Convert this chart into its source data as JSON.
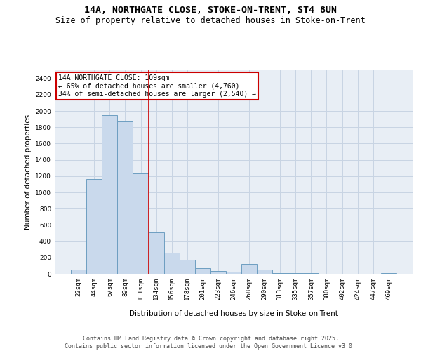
{
  "title_line1": "14A, NORTHGATE CLOSE, STOKE-ON-TRENT, ST4 8UN",
  "title_line2": "Size of property relative to detached houses in Stoke-on-Trent",
  "xlabel": "Distribution of detached houses by size in Stoke-on-Trent",
  "ylabel": "Number of detached properties",
  "categories": [
    "22sqm",
    "44sqm",
    "67sqm",
    "89sqm",
    "111sqm",
    "134sqm",
    "156sqm",
    "178sqm",
    "201sqm",
    "223sqm",
    "246sqm",
    "268sqm",
    "290sqm",
    "313sqm",
    "335sqm",
    "357sqm",
    "380sqm",
    "402sqm",
    "424sqm",
    "447sqm",
    "469sqm"
  ],
  "values": [
    50,
    1160,
    1950,
    1870,
    1230,
    510,
    260,
    170,
    70,
    35,
    25,
    120,
    50,
    5,
    5,
    5,
    2,
    2,
    2,
    2,
    10
  ],
  "bar_color": "#c9d9ec",
  "bar_edge_color": "#6d9ec1",
  "annotation_line_color": "#cc0000",
  "annotation_text_line1": "14A NORTHGATE CLOSE: 109sqm",
  "annotation_text_line2": "← 65% of detached houses are smaller (4,760)",
  "annotation_text_line3": "34% of semi-detached houses are larger (2,540) →",
  "annotation_box_color": "#ffffff",
  "annotation_box_edge": "#cc0000",
  "ylim": [
    0,
    2500
  ],
  "yticks": [
    0,
    200,
    400,
    600,
    800,
    1000,
    1200,
    1400,
    1600,
    1800,
    2000,
    2200,
    2400
  ],
  "grid_color": "#c8d4e3",
  "bg_color": "#e8eef5",
  "footer_line1": "Contains HM Land Registry data © Crown copyright and database right 2025.",
  "footer_line2": "Contains public sector information licensed under the Open Government Licence v3.0.",
  "title_fontsize": 9.5,
  "subtitle_fontsize": 8.5,
  "axis_label_fontsize": 7.5,
  "tick_fontsize": 6.5,
  "annotation_fontsize": 7,
  "footer_fontsize": 6
}
